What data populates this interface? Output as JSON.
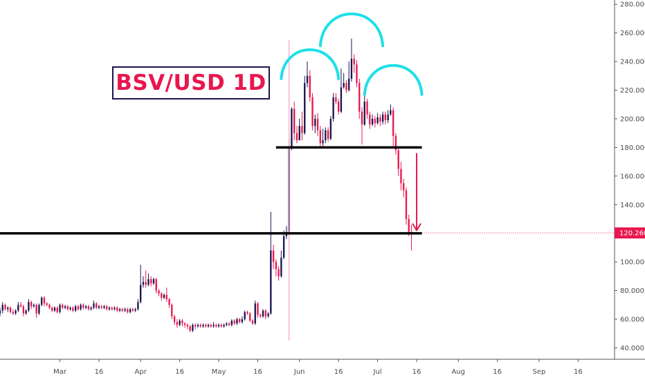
{
  "chart_data": {
    "type": "candlestick",
    "title": "BSV/USD 1D",
    "y_axis": {
      "ticks": [
        "40.000",
        "60.000",
        "80.000",
        "100.000",
        "120.000",
        "140.000",
        "160.000",
        "180.000",
        "200.000",
        "220.000",
        "240.000",
        "260.000",
        "280.000"
      ],
      "tick_values": [
        40,
        60,
        80,
        100,
        120,
        140,
        160,
        180,
        200,
        220,
        240,
        260,
        280
      ],
      "ylim": [
        32,
        283
      ],
      "position": "right"
    },
    "x_axis": {
      "ticks": [
        "Mar",
        "16",
        "Apr",
        "16",
        "May",
        "16",
        "Jun",
        "16",
        "Jul",
        "16",
        "Aug",
        "16",
        "Sep",
        "16"
      ],
      "tick_days": [
        0,
        15,
        31,
        46,
        61,
        76,
        92,
        107,
        122,
        137,
        153,
        168,
        184,
        199
      ],
      "xlim": [
        -23,
        213
      ]
    },
    "last_price": {
      "label": "120.260",
      "value": 120.26
    },
    "candles": [
      [
        -23,
        64,
        66,
        68,
        62
      ],
      [
        -22,
        66,
        70,
        72,
        64
      ],
      [
        -21,
        70,
        67,
        71,
        66
      ],
      [
        -20,
        67,
        68,
        69,
        65
      ],
      [
        -19,
        68,
        65,
        69,
        64
      ],
      [
        -18,
        65,
        64,
        67,
        63
      ],
      [
        -17,
        64,
        66,
        67,
        63
      ],
      [
        -16,
        66,
        70,
        72,
        65
      ],
      [
        -15,
        70,
        69,
        72,
        68
      ],
      [
        -14,
        69,
        64,
        70,
        62
      ],
      [
        -13,
        64,
        66,
        67,
        63
      ],
      [
        -12,
        66,
        72,
        74,
        65
      ],
      [
        -11,
        72,
        69,
        73,
        67
      ],
      [
        -10,
        69,
        70,
        71,
        68
      ],
      [
        -9,
        70,
        64,
        71,
        61
      ],
      [
        -8,
        64,
        70,
        71,
        63
      ],
      [
        -7,
        70,
        75,
        76,
        69
      ],
      [
        -6,
        75,
        71,
        76,
        69
      ],
      [
        -5,
        71,
        70,
        72,
        69
      ],
      [
        -4,
        70,
        68,
        71,
        67
      ],
      [
        -3,
        68,
        66,
        69,
        65
      ],
      [
        -2,
        66,
        68,
        69,
        65
      ],
      [
        -1,
        68,
        65,
        69,
        64
      ],
      [
        0,
        65,
        70,
        71,
        64
      ],
      [
        1,
        70,
        68,
        71,
        67
      ],
      [
        2,
        68,
        69,
        70,
        67
      ],
      [
        3,
        69,
        67,
        70,
        66
      ],
      [
        4,
        67,
        68,
        69,
        66
      ],
      [
        5,
        68,
        66,
        69,
        65
      ],
      [
        6,
        66,
        69,
        70,
        65
      ],
      [
        7,
        69,
        67,
        70,
        66
      ],
      [
        8,
        67,
        70,
        71,
        66
      ],
      [
        9,
        70,
        68,
        71,
        67
      ],
      [
        10,
        68,
        69,
        70,
        67
      ],
      [
        11,
        69,
        67,
        70,
        66
      ],
      [
        12,
        67,
        68,
        69,
        66
      ],
      [
        13,
        68,
        71,
        73,
        67
      ],
      [
        14,
        71,
        68,
        72,
        67
      ],
      [
        15,
        68,
        69,
        70,
        67
      ],
      [
        16,
        69,
        68,
        70,
        67
      ],
      [
        17,
        68,
        69,
        70,
        67
      ],
      [
        18,
        69,
        67,
        70,
        66
      ],
      [
        19,
        67,
        68,
        69,
        66
      ],
      [
        20,
        68,
        67,
        69,
        66
      ],
      [
        21,
        67,
        68,
        69,
        66
      ],
      [
        22,
        68,
        66,
        69,
        65
      ],
      [
        23,
        66,
        67,
        68,
        65
      ],
      [
        24,
        67,
        66,
        68,
        65
      ],
      [
        25,
        66,
        67,
        68,
        65
      ],
      [
        26,
        67,
        65,
        68,
        64
      ],
      [
        27,
        65,
        67,
        68,
        64
      ],
      [
        28,
        67,
        66,
        68,
        65
      ],
      [
        29,
        66,
        67,
        68,
        65
      ],
      [
        30,
        67,
        72,
        74,
        66
      ],
      [
        31,
        72,
        84,
        98,
        71
      ],
      [
        32,
        84,
        86,
        90,
        82
      ],
      [
        33,
        86,
        84,
        94,
        82
      ],
      [
        34,
        84,
        88,
        92,
        83
      ],
      [
        35,
        88,
        85,
        90,
        83
      ],
      [
        36,
        85,
        88,
        89,
        84
      ],
      [
        37,
        88,
        80,
        89,
        78
      ],
      [
        38,
        80,
        78,
        81,
        76
      ],
      [
        39,
        78,
        75,
        79,
        73
      ],
      [
        40,
        75,
        77,
        78,
        74
      ],
      [
        41,
        77,
        74,
        82,
        72
      ],
      [
        42,
        74,
        70,
        75,
        68
      ],
      [
        43,
        70,
        62,
        71,
        60
      ],
      [
        44,
        62,
        58,
        63,
        56
      ],
      [
        45,
        58,
        56,
        60,
        54
      ],
      [
        46,
        56,
        59,
        60,
        55
      ],
      [
        47,
        59,
        57,
        60,
        55
      ],
      [
        48,
        57,
        56,
        58,
        54
      ],
      [
        49,
        56,
        55,
        57,
        53
      ],
      [
        50,
        55,
        52,
        56,
        51
      ],
      [
        51,
        52,
        56,
        57,
        51
      ],
      [
        52,
        56,
        55,
        57,
        53
      ],
      [
        53,
        55,
        56,
        57,
        54
      ],
      [
        54,
        56,
        55,
        57,
        54
      ],
      [
        55,
        55,
        56,
        57,
        54
      ],
      [
        56,
        56,
        55,
        57,
        54
      ],
      [
        57,
        55,
        56,
        57,
        54
      ],
      [
        58,
        56,
        55,
        57,
        54
      ],
      [
        59,
        55,
        56,
        58,
        54
      ],
      [
        60,
        56,
        55,
        57,
        54
      ],
      [
        61,
        55,
        56,
        57,
        54
      ],
      [
        62,
        56,
        55,
        57,
        54
      ],
      [
        63,
        55,
        56,
        57,
        54
      ],
      [
        64,
        56,
        57,
        58,
        55
      ],
      [
        65,
        57,
        56,
        58,
        55
      ],
      [
        66,
        56,
        59,
        60,
        55
      ],
      [
        67,
        59,
        57,
        60,
        56
      ],
      [
        68,
        57,
        60,
        61,
        56
      ],
      [
        69,
        60,
        58,
        61,
        57
      ],
      [
        70,
        58,
        60,
        62,
        57
      ],
      [
        71,
        60,
        65,
        66,
        59
      ],
      [
        72,
        65,
        64,
        66,
        63
      ],
      [
        73,
        64,
        59,
        65,
        58
      ],
      [
        74,
        59,
        57,
        60,
        56
      ],
      [
        75,
        57,
        71,
        73,
        56
      ],
      [
        76,
        71,
        63,
        72,
        61
      ],
      [
        77,
        63,
        62,
        64,
        61
      ],
      [
        78,
        62,
        66,
        67,
        61
      ],
      [
        79,
        66,
        62,
        67,
        60
      ],
      [
        80,
        62,
        64,
        65,
        61
      ],
      [
        81,
        64,
        108,
        135,
        63
      ],
      [
        82,
        108,
        100,
        112,
        95
      ],
      [
        83,
        100,
        95,
        102,
        90
      ],
      [
        84,
        95,
        90,
        97,
        87
      ],
      [
        85,
        90,
        103,
        108,
        89
      ],
      [
        86,
        103,
        118,
        122,
        102
      ],
      [
        87,
        118,
        121,
        125,
        116
      ],
      [
        88,
        121,
        180,
        186,
        119
      ],
      [
        89,
        180,
        207,
        208,
        178
      ],
      [
        90,
        207,
        190,
        212,
        185
      ],
      [
        91,
        190,
        185,
        195,
        183
      ],
      [
        92,
        185,
        195,
        200,
        186
      ],
      [
        93,
        195,
        190,
        205,
        185
      ],
      [
        94,
        190,
        225,
        230,
        189
      ],
      [
        95,
        225,
        230,
        240,
        222
      ],
      [
        96,
        230,
        215,
        234,
        212
      ],
      [
        97,
        215,
        195,
        218,
        192
      ],
      [
        98,
        195,
        200,
        203,
        190
      ],
      [
        99,
        200,
        192,
        204,
        188
      ],
      [
        100,
        192,
        183,
        195,
        180
      ],
      [
        101,
        183,
        185,
        193,
        181
      ],
      [
        102,
        185,
        192,
        194,
        183
      ],
      [
        103,
        192,
        186,
        194,
        184
      ],
      [
        104,
        186,
        200,
        202,
        185
      ],
      [
        105,
        200,
        215,
        218,
        198
      ],
      [
        106,
        215,
        212,
        218,
        210
      ],
      [
        107,
        212,
        205,
        214,
        203
      ],
      [
        108,
        205,
        222,
        235,
        204
      ],
      [
        109,
        222,
        225,
        232,
        221
      ],
      [
        110,
        225,
        220,
        227,
        218
      ],
      [
        111,
        220,
        228,
        240,
        219
      ],
      [
        112,
        228,
        242,
        256,
        226
      ],
      [
        113,
        242,
        238,
        245,
        232
      ],
      [
        114,
        238,
        225,
        241,
        222
      ],
      [
        115,
        225,
        205,
        228,
        200
      ],
      [
        116,
        205,
        196,
        208,
        182
      ],
      [
        117,
        196,
        212,
        218,
        195
      ],
      [
        118,
        212,
        203,
        214,
        200
      ],
      [
        119,
        203,
        196,
        205,
        193
      ],
      [
        120,
        196,
        200,
        203,
        195
      ],
      [
        121,
        200,
        197,
        202,
        194
      ],
      [
        122,
        197,
        201,
        204,
        196
      ],
      [
        123,
        201,
        198,
        203,
        195
      ],
      [
        124,
        198,
        203,
        205,
        196
      ],
      [
        125,
        203,
        199,
        205,
        196
      ],
      [
        126,
        199,
        203,
        206,
        197
      ],
      [
        127,
        203,
        206,
        210,
        202
      ],
      [
        128,
        206,
        188,
        208,
        180
      ],
      [
        129,
        188,
        178,
        190,
        175
      ],
      [
        130,
        178,
        165,
        180,
        160
      ],
      [
        131,
        165,
        155,
        170,
        150
      ],
      [
        132,
        155,
        150,
        158,
        145
      ],
      [
        133,
        150,
        130,
        152,
        126
      ],
      [
        134,
        130,
        121,
        133,
        118
      ],
      [
        135,
        121,
        120,
        126,
        108
      ]
    ],
    "horizontal_lines": [
      {
        "value": 180,
        "color": "#000000",
        "from_day": 83,
        "to_day": 139
      },
      {
        "value": 120,
        "color": "#000000",
        "from_day": -23,
        "to_day": 139
      }
    ],
    "vertical_line": {
      "day": 88,
      "from": 45,
      "to": 255,
      "color": "#f4a5bd"
    },
    "arcs": [
      {
        "center_day": 96,
        "peak": 248,
        "half_width_days": 11,
        "depth": 20
      },
      {
        "center_day": 112,
        "peak": 273,
        "half_width_days": 12,
        "depth": 22
      },
      {
        "center_day": 128,
        "peak": 237,
        "half_width_days": 11,
        "depth": 20
      }
    ],
    "arrow": {
      "day": 137,
      "from": 176,
      "to": 122,
      "color": "#e8174e"
    },
    "colors": {
      "up": "#1a1450",
      "down": "#e8174e",
      "accent_arc": "#1ee0e8"
    }
  }
}
